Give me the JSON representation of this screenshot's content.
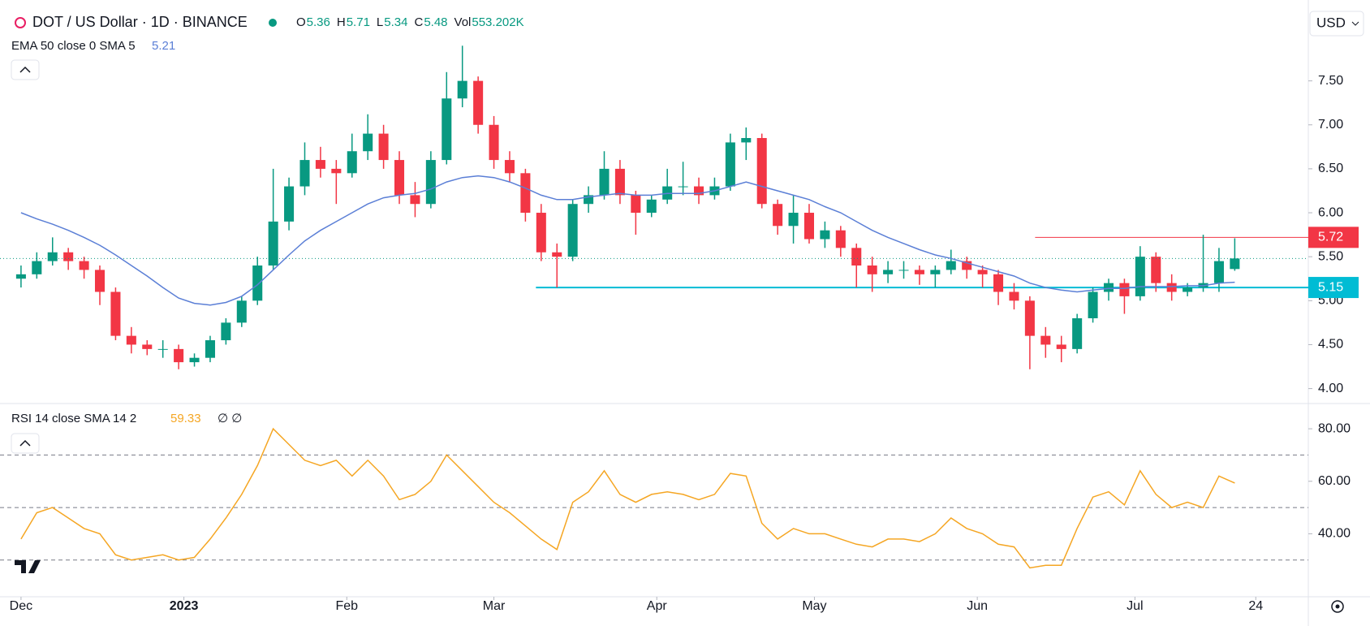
{
  "chart_data": {
    "type": "candlestick",
    "title": "DOT / US Dollar · 1D · BINANCE",
    "currency": "USD",
    "ohlc_legend": [
      {
        "label": "O",
        "value": 5.36
      },
      {
        "label": "H",
        "value": 5.71
      },
      {
        "label": "L",
        "value": 5.34
      },
      {
        "label": "C",
        "value": 5.48
      }
    ],
    "volume": {
      "label": "Vol",
      "value": 553202,
      "value_label": "553.202K"
    },
    "up_color": "#089981",
    "down_color": "#f23645",
    "ylim": [
      3.83,
      8.42
    ],
    "yticks": [
      {
        "value": 4,
        "label": "4.00"
      },
      {
        "value": 4.5,
        "label": "4.50"
      },
      {
        "value": 5,
        "label": "5.00"
      },
      {
        "value": 5.5,
        "label": "5.50"
      },
      {
        "value": 6,
        "label": "6.00"
      },
      {
        "value": 6.5,
        "label": "6.50"
      },
      {
        "value": 7,
        "label": "7.00"
      },
      {
        "value": 7.5,
        "label": "7.50"
      }
    ],
    "xlim": [
      -4,
      245
    ],
    "xticks": [
      {
        "value": 0,
        "label": "Dec"
      },
      {
        "value": 31,
        "label": "2023"
      },
      {
        "value": 62,
        "label": "Feb"
      },
      {
        "value": 90,
        "label": "Mar"
      },
      {
        "value": 121,
        "label": "Apr"
      },
      {
        "value": 151,
        "label": "May"
      },
      {
        "value": 182,
        "label": "Jun"
      },
      {
        "value": 212,
        "label": "Jul"
      },
      {
        "value": 235,
        "label": "24"
      }
    ],
    "x": [
      0,
      3,
      6,
      9,
      12,
      15,
      18,
      21,
      24,
      27,
      30,
      33,
      36,
      39,
      42,
      45,
      48,
      51,
      54,
      57,
      60,
      63,
      66,
      69,
      72,
      75,
      78,
      81,
      84,
      87,
      90,
      93,
      96,
      99,
      102,
      105,
      108,
      111,
      114,
      117,
      120,
      123,
      126,
      129,
      132,
      135,
      138,
      141,
      144,
      147,
      150,
      153,
      156,
      159,
      162,
      165,
      168,
      171,
      174,
      177,
      180,
      183,
      186,
      189,
      192,
      195,
      198,
      201,
      204,
      207,
      210,
      213,
      216,
      219,
      222,
      225,
      228,
      231
    ],
    "candles": [
      [
        5.25,
        5.4,
        5.15,
        5.3
      ],
      [
        5.3,
        5.55,
        5.25,
        5.45
      ],
      [
        5.45,
        5.72,
        5.4,
        5.55
      ],
      [
        5.55,
        5.6,
        5.35,
        5.45
      ],
      [
        5.45,
        5.5,
        5.25,
        5.35
      ],
      [
        5.35,
        5.4,
        4.95,
        5.1
      ],
      [
        5.1,
        5.15,
        4.55,
        4.6
      ],
      [
        4.6,
        4.7,
        4.4,
        4.5
      ],
      [
        4.5,
        4.55,
        4.38,
        4.45
      ],
      [
        4.45,
        4.55,
        4.35,
        4.45
      ],
      [
        4.45,
        4.5,
        4.22,
        4.3
      ],
      [
        4.3,
        4.4,
        4.25,
        4.35
      ],
      [
        4.35,
        4.6,
        4.3,
        4.55
      ],
      [
        4.55,
        4.8,
        4.5,
        4.75
      ],
      [
        4.75,
        5.05,
        4.7,
        5.0
      ],
      [
        5.0,
        5.5,
        4.95,
        5.4
      ],
      [
        5.4,
        6.5,
        5.35,
        5.9
      ],
      [
        5.9,
        6.4,
        5.8,
        6.3
      ],
      [
        6.3,
        6.8,
        6.2,
        6.6
      ],
      [
        6.6,
        6.75,
        6.4,
        6.5
      ],
      [
        6.5,
        6.6,
        6.1,
        6.45
      ],
      [
        6.45,
        6.9,
        6.4,
        6.7
      ],
      [
        6.7,
        7.12,
        6.6,
        6.9
      ],
      [
        6.9,
        7.0,
        6.5,
        6.6
      ],
      [
        6.6,
        6.7,
        6.1,
        6.2
      ],
      [
        6.2,
        6.35,
        5.95,
        6.1
      ],
      [
        6.1,
        6.7,
        6.05,
        6.6
      ],
      [
        6.6,
        7.6,
        6.55,
        7.3
      ],
      [
        7.3,
        7.9,
        7.2,
        7.5
      ],
      [
        7.5,
        7.55,
        6.9,
        7.0
      ],
      [
        7.0,
        7.1,
        6.5,
        6.6
      ],
      [
        6.6,
        6.7,
        6.35,
        6.45
      ],
      [
        6.45,
        6.5,
        5.9,
        6.0
      ],
      [
        6.0,
        6.1,
        5.45,
        5.55
      ],
      [
        5.55,
        5.65,
        5.15,
        5.5
      ],
      [
        5.5,
        6.15,
        5.45,
        6.1
      ],
      [
        6.1,
        6.3,
        6.0,
        6.2
      ],
      [
        6.2,
        6.7,
        6.15,
        6.5
      ],
      [
        6.5,
        6.6,
        6.1,
        6.2
      ],
      [
        6.2,
        6.25,
        5.75,
        6.0
      ],
      [
        6.0,
        6.2,
        5.95,
        6.15
      ],
      [
        6.15,
        6.5,
        6.1,
        6.3
      ],
      [
        6.3,
        6.58,
        6.2,
        6.3
      ],
      [
        6.3,
        6.4,
        6.1,
        6.2
      ],
      [
        6.2,
        6.4,
        6.15,
        6.3
      ],
      [
        6.3,
        6.9,
        6.25,
        6.8
      ],
      [
        6.8,
        6.97,
        6.6,
        6.85
      ],
      [
        6.85,
        6.9,
        6.05,
        6.1
      ],
      [
        6.1,
        6.15,
        5.75,
        5.85
      ],
      [
        5.85,
        6.2,
        5.65,
        6.0
      ],
      [
        6.0,
        6.1,
        5.65,
        5.7
      ],
      [
        5.7,
        5.9,
        5.6,
        5.8
      ],
      [
        5.8,
        5.85,
        5.5,
        5.6
      ],
      [
        5.6,
        5.65,
        5.15,
        5.4
      ],
      [
        5.4,
        5.5,
        5.1,
        5.3
      ],
      [
        5.3,
        5.45,
        5.2,
        5.35
      ],
      [
        5.35,
        5.45,
        5.25,
        5.35
      ],
      [
        5.35,
        5.4,
        5.18,
        5.3
      ],
      [
        5.3,
        5.4,
        5.15,
        5.35
      ],
      [
        5.35,
        5.58,
        5.3,
        5.45
      ],
      [
        5.45,
        5.5,
        5.25,
        5.35
      ],
      [
        5.35,
        5.4,
        5.15,
        5.3
      ],
      [
        5.3,
        5.35,
        4.95,
        5.1
      ],
      [
        5.1,
        5.2,
        4.9,
        5.0
      ],
      [
        5.0,
        5.05,
        4.22,
        4.6
      ],
      [
        4.6,
        4.7,
        4.35,
        4.5
      ],
      [
        4.5,
        4.6,
        4.3,
        4.45
      ],
      [
        4.45,
        4.85,
        4.4,
        4.8
      ],
      [
        4.8,
        5.15,
        4.75,
        5.1
      ],
      [
        5.1,
        5.25,
        5.0,
        5.2
      ],
      [
        5.2,
        5.25,
        4.85,
        5.05
      ],
      [
        5.05,
        5.62,
        5.0,
        5.5
      ],
      [
        5.5,
        5.55,
        5.1,
        5.2
      ],
      [
        5.2,
        5.3,
        5.0,
        5.1
      ],
      [
        5.1,
        5.2,
        5.05,
        5.15
      ],
      [
        5.15,
        5.75,
        5.1,
        5.2
      ],
      [
        5.2,
        5.6,
        5.1,
        5.45
      ],
      [
        5.36,
        5.71,
        5.34,
        5.48
      ]
    ],
    "ema": {
      "name": "EMA 50 close 0 SMA 5",
      "value": 5.21,
      "color": "#5b7fd6",
      "values": [
        6.0,
        5.93,
        5.87,
        5.8,
        5.72,
        5.63,
        5.52,
        5.4,
        5.28,
        5.15,
        5.03,
        4.97,
        4.95,
        4.98,
        5.05,
        5.18,
        5.35,
        5.52,
        5.68,
        5.8,
        5.9,
        6.0,
        6.1,
        6.17,
        6.2,
        6.22,
        6.27,
        6.35,
        6.4,
        6.42,
        6.4,
        6.35,
        6.28,
        6.2,
        6.15,
        6.15,
        6.18,
        6.2,
        6.22,
        6.2,
        6.2,
        6.22,
        6.22,
        6.22,
        6.25,
        6.3,
        6.35,
        6.3,
        6.25,
        6.2,
        6.15,
        6.07,
        6.0,
        5.9,
        5.8,
        5.72,
        5.65,
        5.58,
        5.52,
        5.48,
        5.43,
        5.38,
        5.33,
        5.28,
        5.2,
        5.15,
        5.12,
        5.1,
        5.12,
        5.14,
        5.14,
        5.16,
        5.16,
        5.16,
        5.17,
        5.17,
        5.2,
        5.21
      ]
    },
    "levels": [
      {
        "value": 5.72,
        "label": "5.72",
        "color": "#f23645",
        "x_start": 193
      },
      {
        "value": 5.15,
        "label": "5.15",
        "color": "#00bcd4",
        "x_start": 98
      }
    ],
    "rsi": {
      "name": "RSI 14 close SMA 14 2",
      "value": 59.33,
      "extra": "∅ ∅",
      "color": "#f5a623",
      "ylim": [
        16,
        89
      ],
      "yticks": [
        {
          "value": 40,
          "label": "40.00"
        },
        {
          "value": 60,
          "label": "60.00"
        },
        {
          "value": 80,
          "label": "80.00"
        }
      ],
      "bands": [
        30,
        50,
        70
      ],
      "values": [
        38,
        48,
        50,
        46,
        42,
        40,
        32,
        30,
        31,
        32,
        30,
        31,
        38,
        46,
        55,
        66,
        80,
        74,
        68,
        66,
        68,
        62,
        68,
        62,
        53,
        55,
        60,
        70,
        64,
        58,
        52,
        48,
        43,
        38,
        34,
        52,
        56,
        64,
        55,
        52,
        55,
        56,
        55,
        53,
        55,
        63,
        62,
        44,
        38,
        42,
        40,
        40,
        38,
        36,
        35,
        38,
        38,
        37,
        40,
        46,
        42,
        40,
        36,
        35,
        27,
        28,
        28,
        42,
        54,
        56,
        51,
        64,
        55,
        50,
        52,
        50,
        62,
        59.33
      ]
    }
  }
}
